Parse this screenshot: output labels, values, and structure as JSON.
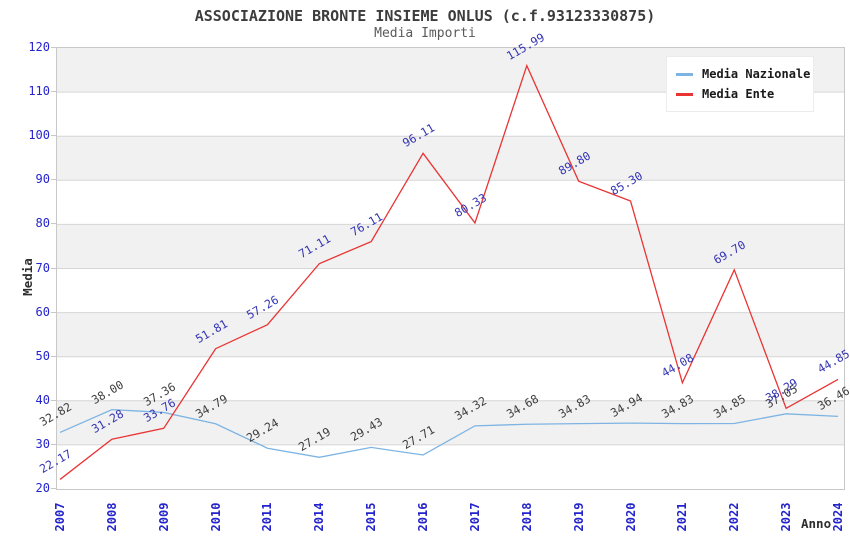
{
  "header": {
    "title": "ASSOCIAZIONE BRONTE INSIEME ONLUS (c.f.93123330875)",
    "subtitle": "Media Importi"
  },
  "chart_data": {
    "type": "line",
    "title": "ASSOCIAZIONE BRONTE INSIEME ONLUS (c.f.93123330875)",
    "subtitle": "Media Importi",
    "xlabel": "Anno",
    "ylabel": "Media",
    "categories": [
      "2007",
      "2008",
      "2009",
      "2010",
      "2011",
      "2014",
      "2015",
      "2016",
      "2017",
      "2018",
      "2019",
      "2020",
      "2021",
      "2022",
      "2023",
      "2024"
    ],
    "series": [
      {
        "name": "Media Nazionale",
        "color": "#7db4e3",
        "label_color": "#3d3d3d",
        "values": [
          32.82,
          38.0,
          37.36,
          34.79,
          29.24,
          27.19,
          29.43,
          27.71,
          34.32,
          34.68,
          34.83,
          34.94,
          34.83,
          34.85,
          37.05,
          36.46
        ]
      },
      {
        "name": "Media Ente",
        "color": "#e93434",
        "label_color": "#3434b4",
        "values": [
          22.17,
          31.28,
          33.76,
          51.81,
          57.26,
          71.11,
          76.11,
          96.11,
          80.33,
          115.99,
          89.8,
          85.3,
          44.08,
          69.7,
          38.29,
          44.85
        ]
      }
    ],
    "ylim": [
      20,
      120
    ],
    "ytick_step": 10,
    "grid": "horizontal-gridlines-with-alternating-bands",
    "band_colors": [
      "#f1f1f1",
      "#ffffff"
    ],
    "gridline_color": "#d6d6d6",
    "tick_color": "#2424cc",
    "legend_position": "top-right",
    "x_tick_rotation": -90,
    "data_label_rotation": -30
  }
}
